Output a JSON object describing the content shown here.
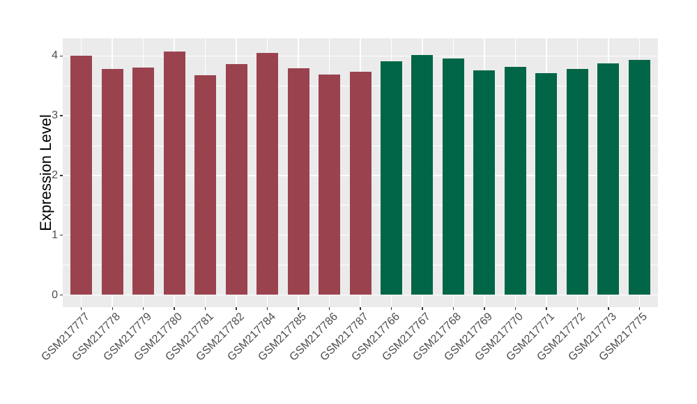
{
  "chart_data": {
    "type": "bar",
    "title": "",
    "xlabel": "",
    "ylabel": "Expression Level",
    "ylim": [
      0,
      4.3
    ],
    "yticks": [
      0,
      1,
      2,
      3,
      4
    ],
    "grid": "on",
    "legend_position": "none",
    "categories": [
      "GSM217777",
      "GSM217778",
      "GSM217779",
      "GSM217780",
      "GSM217781",
      "GSM217782",
      "GSM217784",
      "GSM217785",
      "GSM217786",
      "GSM217787",
      "GSM217766",
      "GSM217767",
      "GSM217768",
      "GSM217769",
      "GSM217770",
      "GSM217771",
      "GSM217772",
      "GSM217773",
      "GSM217775"
    ],
    "values": [
      4.0,
      3.78,
      3.8,
      4.07,
      3.68,
      3.86,
      4.05,
      3.79,
      3.69,
      3.73,
      3.91,
      4.02,
      3.96,
      3.76,
      3.82,
      3.71,
      3.78,
      3.88,
      3.93
    ],
    "bar_colors": [
      "#9A434F",
      "#9A434F",
      "#9A434F",
      "#9A434F",
      "#9A434F",
      "#9A434F",
      "#9A434F",
      "#9A434F",
      "#9A434F",
      "#9A434F",
      "#006647",
      "#006647",
      "#006647",
      "#006647",
      "#006647",
      "#006647",
      "#006647",
      "#006647",
      "#006647"
    ],
    "group_colors": {
      "left_group": "#9A434F",
      "right_group": "#006647"
    },
    "style_colors": {
      "panel_background": "#EBEBEB",
      "gridline": "#FFFFFF",
      "tick_mark": "#333333",
      "axis_text": "#4D4D4D",
      "axis_title": "#000000",
      "figure_background": "#FFFFFF"
    }
  }
}
